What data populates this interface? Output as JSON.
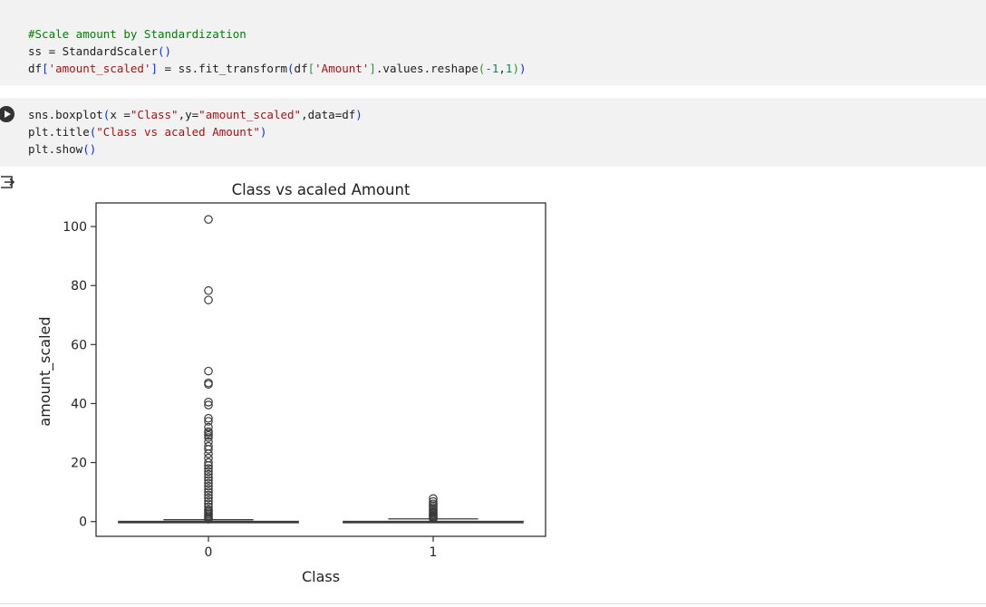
{
  "notebook": {
    "prev_cell_bracket": "]",
    "cell1": {
      "comment": "#Scale amount by Standardization",
      "line2": [
        "ss = StandardScaler",
        "()"
      ],
      "line3": [
        "df",
        "[",
        "'amount_scaled'",
        "]",
        " = ss.fit_transform",
        "(",
        "df",
        "[",
        "'Amount'",
        "]",
        ".values.reshape",
        "(",
        "-1",
        ",",
        "1",
        ")",
        ")"
      ]
    },
    "cell2": {
      "line1": [
        "sns.boxplot",
        "(",
        "x =",
        "\"Class\"",
        ",y=",
        "\"amount_scaled\"",
        ",data=df",
        ")"
      ],
      "line2": [
        "plt.title",
        "(",
        "\"Class vs acaled Amount\"",
        ")"
      ],
      "line3": [
        "plt.show",
        "()"
      ]
    },
    "run_icon": "play-icon",
    "output_icon": "output-toggle-icon"
  },
  "chart_data": {
    "type": "box",
    "title": "Class vs acaled Amount",
    "xlabel": "Class",
    "ylabel": "amount_scaled",
    "categories": [
      "0",
      "1"
    ],
    "yticks": [
      0,
      20,
      40,
      60,
      80,
      100
    ],
    "ylim": [
      -5,
      108
    ],
    "boxes": [
      {
        "category": "0",
        "whisker_low": -0.35,
        "q1": -0.33,
        "median": -0.27,
        "q3": 0.07,
        "whisker_high": 0.62,
        "outliers": [
          102.4,
          78.3,
          75.1,
          51.0,
          47.0,
          46.5,
          40.5,
          39.5,
          35.0,
          34.0,
          32.0,
          30.5,
          30.0,
          29.2,
          28.5,
          27.0,
          25.5,
          24.5,
          23.0,
          21.5,
          20.0,
          19.0,
          18.0,
          17.0,
          16.0,
          15.0,
          14.0,
          13.0,
          12.0,
          11.0,
          10.0,
          9.0,
          8.0,
          7.0,
          6.0,
          5.0,
          4.0,
          3.5,
          3.0,
          2.5,
          2.0,
          1.5,
          1.0,
          0.8
        ]
      },
      {
        "category": "1",
        "whisker_low": -0.35,
        "q1": -0.34,
        "median": -0.31,
        "q3": 0.07,
        "whisker_high": 0.9,
        "outliers": [
          7.8,
          6.8,
          6.0,
          5.4,
          4.8,
          4.2,
          3.8,
          3.2,
          2.8,
          2.4,
          2.0,
          1.6,
          1.3,
          1.0
        ]
      }
    ],
    "color": "#3b3b3b"
  }
}
